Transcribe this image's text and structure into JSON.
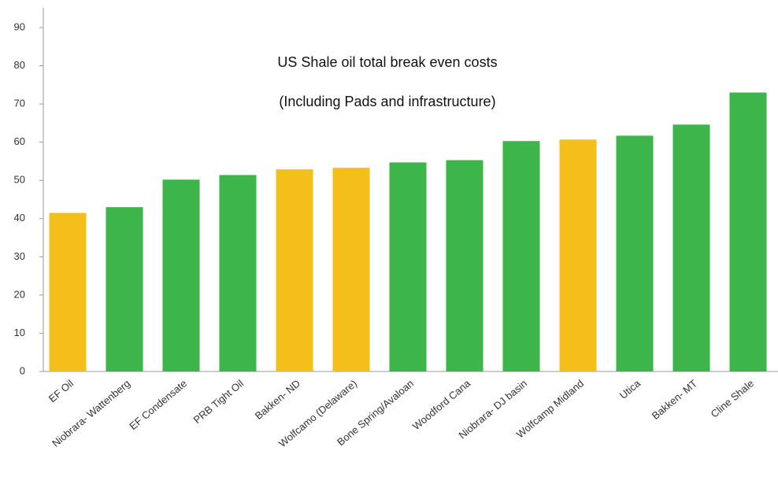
{
  "chart_data": {
    "type": "bar",
    "annotations": [
      "US Shale oil total break even costs",
      "(Including Pads and infrastructure)"
    ],
    "categories": [
      "EF Oil",
      "Niobrara- Wattenberg",
      "EF Condensate",
      "PRB Tight Oil",
      "Bakken- ND",
      "Wolfcamo (Delaware)",
      "Bone Spring/Avaloan",
      "Woodford Cana",
      "Niobrara- DJ basin",
      "Wolfcamp Midland",
      "Utica",
      "Bakken- MT",
      "Cline Shale"
    ],
    "values": [
      41.5,
      43,
      50.2,
      51.4,
      52.9,
      53.3,
      54.7,
      55.3,
      60.3,
      60.7,
      61.7,
      64.6,
      73
    ],
    "colors": [
      "#f5bf1b",
      "#3db54a",
      "#3db54a",
      "#3db54a",
      "#f5bf1b",
      "#f5bf1b",
      "#3db54a",
      "#3db54a",
      "#3db54a",
      "#f5bf1b",
      "#3db54a",
      "#3db54a",
      "#3db54a"
    ],
    "ylim": [
      0,
      90
    ],
    "yticks": [
      0,
      10,
      20,
      30,
      40,
      50,
      60,
      70,
      80,
      90
    ],
    "grid": false
  }
}
